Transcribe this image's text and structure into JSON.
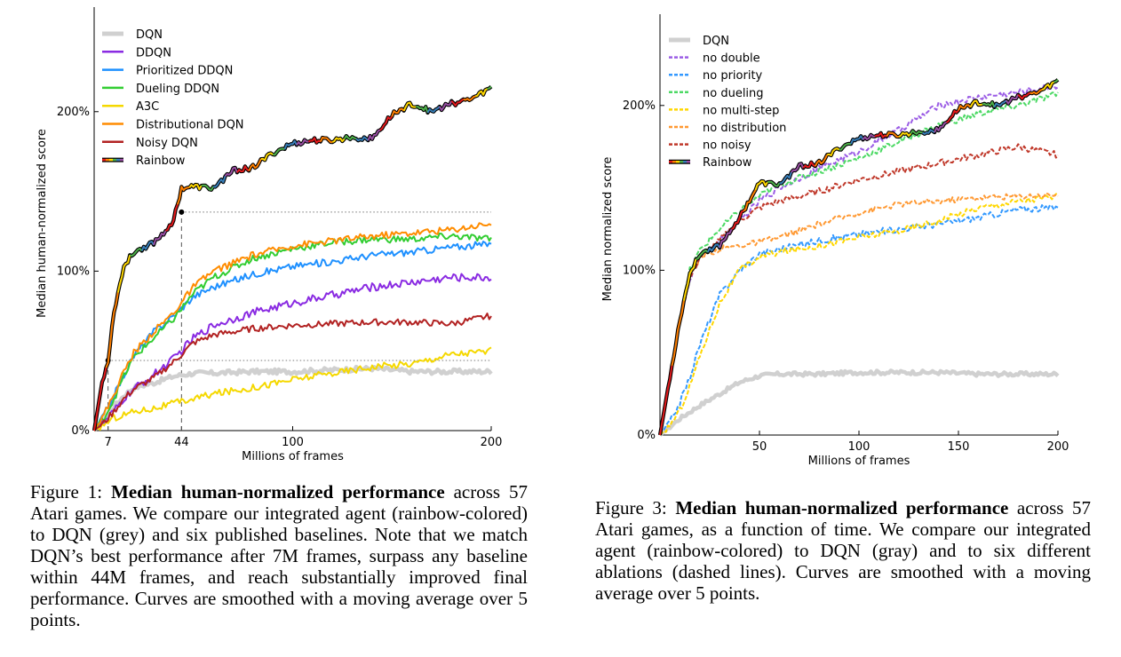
{
  "chart_data": [
    {
      "type": "line",
      "ylabel": "Median human-normalized score",
      "xlabel": "Millions of frames",
      "xlim": [
        0,
        200
      ],
      "ylim": [
        0,
        2.6
      ],
      "x_ticks": [
        7,
        44,
        100,
        200
      ],
      "y_ticks": [
        {
          "value": 0,
          "label": "0%"
        },
        {
          "value": 1,
          "label": "100%"
        },
        {
          "value": 2,
          "label": "200%"
        }
      ],
      "reference_lines": [
        {
          "x": 7,
          "y": 0.44
        },
        {
          "x": 44,
          "y": 1.37
        }
      ],
      "legend_position": "top-left",
      "series": [
        {
          "name": "DQN",
          "color": "#d0d0d0",
          "style": "thick",
          "noise": 0.015,
          "x": [
            0,
            5,
            10,
            15,
            20,
            30,
            40,
            50,
            60,
            80,
            100,
            120,
            140,
            160,
            180,
            200
          ],
          "y": [
            0,
            0.08,
            0.15,
            0.22,
            0.27,
            0.3,
            0.34,
            0.36,
            0.36,
            0.37,
            0.37,
            0.38,
            0.39,
            0.37,
            0.37,
            0.37
          ]
        },
        {
          "name": "DDQN",
          "color": "#8a2be2",
          "style": "solid",
          "noise": 0.025,
          "x": [
            0,
            5,
            10,
            15,
            20,
            30,
            40,
            50,
            60,
            80,
            100,
            120,
            140,
            160,
            180,
            200
          ],
          "y": [
            0,
            0.05,
            0.12,
            0.2,
            0.26,
            0.35,
            0.45,
            0.58,
            0.66,
            0.74,
            0.8,
            0.85,
            0.9,
            0.93,
            0.96,
            0.96
          ]
        },
        {
          "name": "Prioritized DDQN",
          "color": "#1e90ff",
          "style": "solid",
          "noise": 0.022,
          "x": [
            0,
            5,
            10,
            15,
            20,
            30,
            40,
            50,
            60,
            80,
            100,
            120,
            140,
            160,
            180,
            200
          ],
          "y": [
            0,
            0.1,
            0.22,
            0.35,
            0.47,
            0.62,
            0.72,
            0.84,
            0.9,
            0.98,
            1.03,
            1.06,
            1.1,
            1.12,
            1.15,
            1.17
          ]
        },
        {
          "name": "Dueling DDQN",
          "color": "#32cd32",
          "style": "solid",
          "noise": 0.022,
          "x": [
            0,
            5,
            10,
            15,
            20,
            30,
            40,
            50,
            60,
            80,
            100,
            120,
            140,
            160,
            180,
            200
          ],
          "y": [
            0,
            0.08,
            0.2,
            0.34,
            0.46,
            0.58,
            0.7,
            0.86,
            0.96,
            1.08,
            1.14,
            1.18,
            1.2,
            1.2,
            1.22,
            1.2
          ]
        },
        {
          "name": "A3C",
          "color": "#f5d800",
          "style": "solid",
          "noise": 0.022,
          "x": [
            0,
            5,
            10,
            15,
            20,
            30,
            40,
            50,
            60,
            80,
            100,
            120,
            140,
            160,
            180,
            200
          ],
          "y": [
            0,
            0.04,
            0.08,
            0.1,
            0.12,
            0.14,
            0.17,
            0.2,
            0.23,
            0.27,
            0.32,
            0.36,
            0.4,
            0.42,
            0.48,
            0.5
          ]
        },
        {
          "name": "Distributional DQN",
          "color": "#ff8c00",
          "style": "solid",
          "noise": 0.022,
          "x": [
            0,
            5,
            10,
            15,
            20,
            30,
            40,
            50,
            60,
            80,
            100,
            120,
            140,
            160,
            180,
            200
          ],
          "y": [
            0,
            0.1,
            0.23,
            0.37,
            0.49,
            0.62,
            0.74,
            0.9,
            1.0,
            1.1,
            1.16,
            1.19,
            1.22,
            1.24,
            1.26,
            1.3
          ]
        },
        {
          "name": "Noisy DQN",
          "color": "#b22222",
          "style": "solid",
          "noise": 0.02,
          "x": [
            0,
            5,
            10,
            15,
            20,
            30,
            40,
            50,
            60,
            80,
            100,
            120,
            140,
            160,
            180,
            200
          ],
          "y": [
            0,
            0.05,
            0.12,
            0.2,
            0.26,
            0.33,
            0.43,
            0.55,
            0.6,
            0.64,
            0.66,
            0.67,
            0.68,
            0.68,
            0.67,
            0.72
          ]
        },
        {
          "name": "Rainbow",
          "color": "rainbow",
          "style": "rainbow",
          "noise": 0.018,
          "x": [
            0,
            2,
            4,
            7,
            10,
            15,
            20,
            25,
            30,
            35,
            40,
            44,
            50,
            60,
            70,
            80,
            90,
            100,
            110,
            120,
            130,
            140,
            150,
            160,
            170,
            180,
            190,
            200
          ],
          "y": [
            0,
            0.15,
            0.3,
            0.44,
            0.75,
            1.03,
            1.12,
            1.15,
            1.18,
            1.24,
            1.32,
            1.52,
            1.53,
            1.52,
            1.63,
            1.65,
            1.74,
            1.8,
            1.82,
            1.82,
            1.84,
            1.83,
            1.98,
            2.05,
            2.0,
            2.05,
            2.08,
            2.15
          ]
        }
      ]
    },
    {
      "type": "line",
      "ylabel": "Median normalized score",
      "xlabel": "Millions of frames",
      "xlim": [
        0,
        200
      ],
      "ylim": [
        0,
        2.5
      ],
      "x_ticks": [
        50,
        100,
        150,
        200
      ],
      "y_ticks": [
        {
          "value": 0,
          "label": "0%"
        },
        {
          "value": 1,
          "label": "100%"
        },
        {
          "value": 2,
          "label": "200%"
        }
      ],
      "legend_position": "top-left",
      "series": [
        {
          "name": "DQN",
          "color": "#d0d0d0",
          "style": "thick",
          "noise": 0.012,
          "x": [
            0,
            5,
            10,
            15,
            20,
            30,
            40,
            50,
            60,
            80,
            100,
            120,
            140,
            160,
            180,
            200
          ],
          "y": [
            0,
            0.05,
            0.1,
            0.14,
            0.18,
            0.25,
            0.32,
            0.36,
            0.37,
            0.37,
            0.38,
            0.38,
            0.38,
            0.37,
            0.37,
            0.37
          ]
        },
        {
          "name": "no double",
          "color": "#9b5de5",
          "style": "dashed",
          "noise": 0.02,
          "x": [
            0,
            5,
            10,
            15,
            20,
            30,
            40,
            50,
            60,
            80,
            100,
            120,
            140,
            160,
            180,
            200
          ],
          "y": [
            0,
            0.35,
            0.7,
            0.95,
            1.08,
            1.18,
            1.3,
            1.42,
            1.5,
            1.62,
            1.72,
            1.85,
            2.0,
            2.05,
            2.08,
            2.12
          ]
        },
        {
          "name": "no priority",
          "color": "#3399ff",
          "style": "dashed",
          "noise": 0.02,
          "x": [
            0,
            5,
            10,
            15,
            20,
            30,
            40,
            50,
            60,
            80,
            100,
            120,
            140,
            160,
            180,
            200
          ],
          "y": [
            0,
            0.08,
            0.2,
            0.35,
            0.55,
            0.85,
            1.0,
            1.1,
            1.13,
            1.18,
            1.22,
            1.25,
            1.28,
            1.32,
            1.37,
            1.38
          ]
        },
        {
          "name": "no dueling",
          "color": "#4cd964",
          "style": "dashed",
          "noise": 0.02,
          "x": [
            0,
            5,
            10,
            15,
            20,
            30,
            40,
            50,
            60,
            80,
            100,
            120,
            140,
            160,
            180,
            200
          ],
          "y": [
            0,
            0.35,
            0.72,
            1.0,
            1.12,
            1.25,
            1.36,
            1.45,
            1.52,
            1.6,
            1.68,
            1.78,
            1.88,
            1.95,
            2.0,
            2.07
          ]
        },
        {
          "name": "no multi-step",
          "color": "#ffd700",
          "style": "dashed",
          "noise": 0.02,
          "x": [
            0,
            5,
            10,
            15,
            20,
            30,
            40,
            50,
            60,
            80,
            100,
            120,
            140,
            160,
            180,
            200
          ],
          "y": [
            0,
            0.06,
            0.15,
            0.3,
            0.48,
            0.8,
            1.0,
            1.08,
            1.11,
            1.15,
            1.2,
            1.24,
            1.3,
            1.38,
            1.42,
            1.45
          ]
        },
        {
          "name": "no distribution",
          "color": "#ff9933",
          "style": "dashed",
          "noise": 0.018,
          "x": [
            0,
            5,
            10,
            15,
            20,
            30,
            40,
            50,
            60,
            80,
            100,
            120,
            140,
            160,
            180,
            200
          ],
          "y": [
            0,
            0.35,
            0.7,
            0.95,
            1.08,
            1.13,
            1.15,
            1.17,
            1.2,
            1.28,
            1.35,
            1.4,
            1.42,
            1.44,
            1.45,
            1.46
          ]
        },
        {
          "name": "no noisy",
          "color": "#c0392b",
          "style": "dashed",
          "noise": 0.02,
          "x": [
            0,
            5,
            10,
            15,
            20,
            30,
            40,
            50,
            60,
            80,
            100,
            120,
            140,
            160,
            180,
            200
          ],
          "y": [
            0,
            0.35,
            0.7,
            0.95,
            1.08,
            1.18,
            1.3,
            1.38,
            1.42,
            1.48,
            1.55,
            1.6,
            1.65,
            1.7,
            1.75,
            1.7
          ]
        },
        {
          "name": "Rainbow",
          "color": "rainbow",
          "style": "rainbow",
          "noise": 0.016,
          "x": [
            0,
            5,
            10,
            15,
            20,
            25,
            30,
            40,
            50,
            60,
            70,
            80,
            90,
            100,
            110,
            120,
            130,
            140,
            150,
            160,
            170,
            180,
            190,
            200
          ],
          "y": [
            0,
            0.35,
            0.7,
            0.98,
            1.1,
            1.13,
            1.15,
            1.32,
            1.53,
            1.52,
            1.63,
            1.65,
            1.74,
            1.8,
            1.82,
            1.82,
            1.84,
            1.85,
            1.98,
            2.02,
            2.0,
            2.05,
            2.08,
            2.15
          ]
        }
      ]
    }
  ],
  "captions": {
    "fig1": {
      "prefix": "Figure 1: ",
      "bold": "Median human-normalized performance",
      "text": " across 57 Atari games. We compare our integrated agent (rainbow-colored) to DQN (grey) and six published baselines. Note that we match DQN’s best performance after 7M frames, surpass any baseline within 44M frames, and reach sub­stantially improved final performance. Curves are smoothed with a moving average over 5 points."
    },
    "fig3": {
      "prefix": "Figure 3: ",
      "bold": "Median human-normalized performance",
      "text": " across 57 Atari games, as a function of time. We compare our in­tegrated agent (rainbow-colored) to DQN (gray) and to six different ablations (dashed lines). Curves are smoothed with a moving average over 5 points."
    }
  }
}
